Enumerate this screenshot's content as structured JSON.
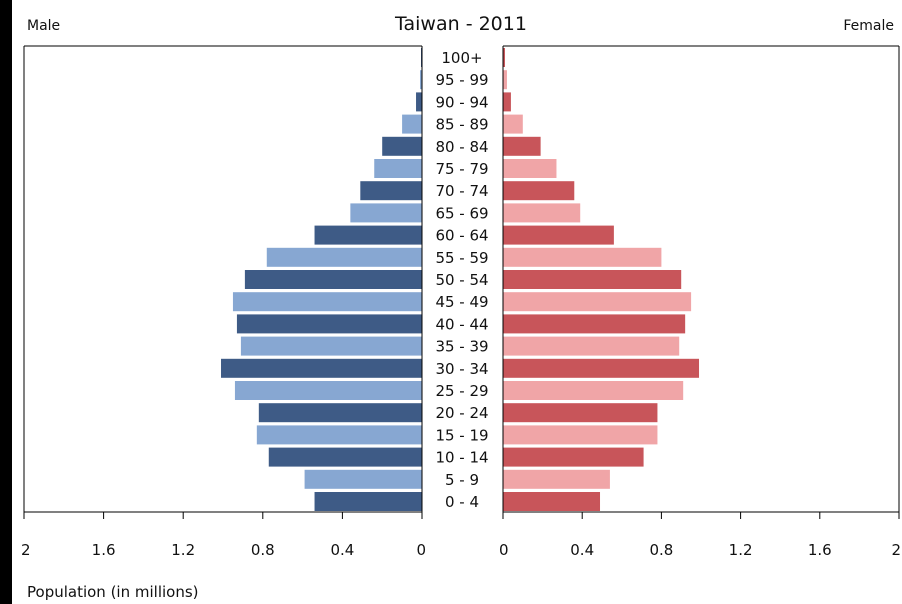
{
  "chart_data": {
    "type": "bar",
    "title": "Taiwan - 2011",
    "left_label": "Male",
    "right_label": "Female",
    "xlabel": "Population (in millions)",
    "xlim": [
      0,
      2
    ],
    "x_ticks": [
      "0",
      "0.4",
      "0.8",
      "1.2",
      "1.6",
      "2"
    ],
    "grid": false,
    "categories": [
      "100+",
      "95 - 99",
      "90 - 94",
      "85 - 89",
      "80 - 84",
      "75 - 79",
      "70 - 74",
      "65 - 69",
      "60 - 64",
      "55 - 59",
      "50 - 54",
      "45 - 49",
      "40 - 44",
      "35 - 39",
      "30 - 34",
      "25 - 29",
      "20 - 24",
      "15 - 19",
      "10 - 14",
      "5 - 9",
      "0 - 4"
    ],
    "series": [
      {
        "name": "Male",
        "values": [
          0.005,
          0.01,
          0.03,
          0.1,
          0.2,
          0.24,
          0.31,
          0.36,
          0.54,
          0.78,
          0.89,
          0.95,
          0.93,
          0.91,
          1.01,
          0.94,
          0.82,
          0.83,
          0.77,
          0.59,
          0.54
        ],
        "colors": [
          "#3e5b86",
          "#87a7d2"
        ]
      },
      {
        "name": "Female",
        "values": [
          0.01,
          0.02,
          0.04,
          0.1,
          0.19,
          0.27,
          0.36,
          0.39,
          0.56,
          0.8,
          0.9,
          0.95,
          0.92,
          0.89,
          0.99,
          0.91,
          0.78,
          0.78,
          0.71,
          0.54,
          0.49
        ],
        "colors": [
          "#c8555a",
          "#f0a5a7"
        ]
      }
    ]
  }
}
